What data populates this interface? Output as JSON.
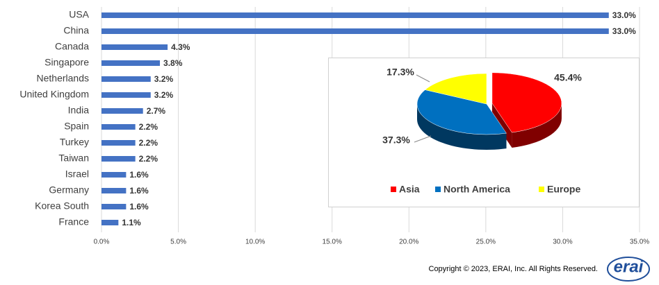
{
  "chart_data": [
    {
      "type": "barh",
      "categories": [
        "USA",
        "China",
        "Canada",
        "Singapore",
        "Netherlands",
        "United Kingdom",
        "India",
        "Spain",
        "Turkey",
        "Taiwan",
        "Israel",
        "Germany",
        "Korea South",
        "France"
      ],
      "values": [
        33.0,
        33.0,
        4.3,
        3.8,
        3.2,
        3.2,
        2.7,
        2.2,
        2.2,
        2.2,
        1.6,
        1.6,
        1.6,
        1.1
      ],
      "value_labels": [
        "33.0%",
        "33.0%",
        "4.3%",
        "3.8%",
        "3.2%",
        "3.2%",
        "2.7%",
        "2.2%",
        "2.2%",
        "2.2%",
        "1.6%",
        "1.6%",
        "1.6%",
        "1.1%"
      ],
      "color": "#4472c4",
      "xlim": [
        0,
        35
      ],
      "xticks": [
        {
          "value": 0,
          "label": "0.0%"
        },
        {
          "value": 5,
          "label": "5.0%"
        },
        {
          "value": 10,
          "label": "10.0%"
        },
        {
          "value": 15,
          "label": "15.0%"
        },
        {
          "value": 20,
          "label": "20.0%"
        },
        {
          "value": 25,
          "label": "25.0%"
        },
        {
          "value": 30,
          "label": "30.0%"
        },
        {
          "value": 35,
          "label": "35.0%"
        }
      ],
      "grid": true
    },
    {
      "type": "pie",
      "categories": [
        "Asia",
        "North America",
        "Europe"
      ],
      "values": [
        45.4,
        37.3,
        17.3
      ],
      "value_labels": [
        "45.4%",
        "37.3%",
        "17.3%"
      ],
      "colors": [
        "#ff0000",
        "#0070c0",
        "#ffff00"
      ],
      "legend": "bottom"
    }
  ],
  "footer": {
    "copyright": "Copyright © 2023, ERAI, Inc.  All Rights Reserved.",
    "logo": "erai"
  }
}
